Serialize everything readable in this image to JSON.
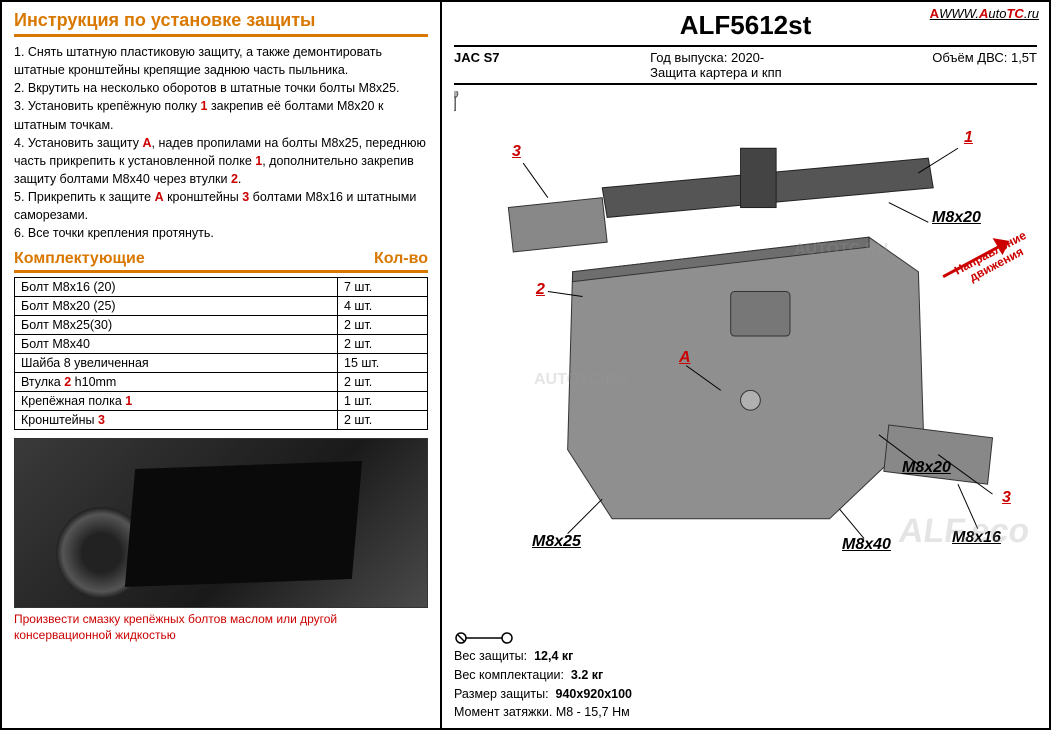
{
  "left": {
    "instructions_title": "Инструкция по установке защиты",
    "parts_title_l": "Комплектующие",
    "parts_title_r": "Кол-во",
    "photo_note": "Произвести смазку крепёжных болтов маслом или другой консервационной жидкостью"
  },
  "instructions": [
    "1. Снять штатную пластиковую защиту, а также демонтировать штатные кронштейны крепящие заднюю часть пыльника.",
    "2. Вкрутить на несколько оборотов в штатные точки болты М8х25.",
    "3. Установить крепёжную полку <r>1</r> закрепив её болтами М8х20 к штатным точкам.",
    "4. Установить защиту <r>А</r>, надев пропилами на болты М8х25, переднюю часть прикрепить к установленной полке <r>1</r>, дополнительно закрепив защиту болтами М8х40 через втулки <r>2</r>.",
    "5. Прикрепить к защите <r>А</r> кронштейны <r>3</r> болтами М8х16 и штатными саморезами.",
    "6. Все точки крепления протянуть."
  ],
  "parts": [
    {
      "name": "Болт М8х16 (20)",
      "qty": "7 шт."
    },
    {
      "name": "Болт М8х20 (25)",
      "qty": "4 шт."
    },
    {
      "name": "Болт М8х25(30)",
      "qty": "2 шт."
    },
    {
      "name": "Болт М8х40",
      "qty": "2 шт."
    },
    {
      "name": "Шайба 8 увеличенная",
      "qty": "15 шт."
    },
    {
      "name": "Втулка <r>2</r> h10mm",
      "qty": "2 шт."
    },
    {
      "name": "Крепёжная полка <r>1</r>",
      "qty": "1 шт."
    },
    {
      "name": "Кронштейны <r>3</r>",
      "qty": "2 шт."
    }
  ],
  "right": {
    "code": "ALF5612st",
    "model": "JAC S7",
    "year_label": "Год выпуска: 2020-",
    "protect_label": "Защита картера и кпп",
    "engine": "Объём ДВС: 1,5Т",
    "site": "WWW.AutoTC.ru",
    "dir1": "Направление",
    "dir2": "движения",
    "spec1": "Вес защиты:",
    "spec1v": "12,4 кг",
    "spec2": "Вес комплектации:",
    "spec2v": "3.2 кг",
    "spec3": "Размер защиты:",
    "spec3v": "940x920x100",
    "spec4": "Момент затяжки.   М8 - 15,7 Нм"
  },
  "callouts": {
    "n1": "1",
    "n2": "2",
    "n3": "3",
    "nA": "А",
    "m8x20": "M8x20",
    "m8x25": "M8x25",
    "m8x40": "M8x40",
    "m8x16": "M8x16"
  },
  "watermarks": [
    "ALF.eco",
    "AUTOTC.RU",
    "AUTOTC.RU",
    "AUTOTC.RU"
  ]
}
